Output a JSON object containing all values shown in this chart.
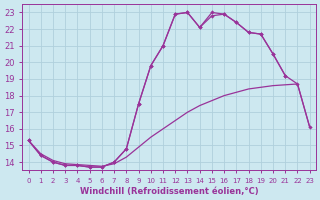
{
  "background_color": "#cde8f0",
  "grid_color": "#b0d0dc",
  "line_color": "#993399",
  "xlim": [
    -0.5,
    23.5
  ],
  "ylim": [
    13.5,
    23.5
  ],
  "xticks": [
    0,
    1,
    2,
    3,
    4,
    5,
    6,
    7,
    8,
    9,
    10,
    11,
    12,
    13,
    14,
    15,
    16,
    17,
    18,
    19,
    20,
    21,
    22,
    23
  ],
  "yticks": [
    14,
    15,
    16,
    17,
    18,
    19,
    20,
    21,
    22,
    23
  ],
  "xlabel": "Windchill (Refroidissement éolien,°C)",
  "series1_x": [
    0,
    1,
    2,
    3,
    4,
    5,
    6,
    7,
    8,
    9,
    10,
    11,
    12,
    13,
    14,
    15,
    16,
    17,
    18,
    19,
    20,
    21
  ],
  "series1_y": [
    15.3,
    14.4,
    14.0,
    13.8,
    13.8,
    13.7,
    13.7,
    14.0,
    14.8,
    17.5,
    19.8,
    21.0,
    22.9,
    23.0,
    22.1,
    23.0,
    22.9,
    22.4,
    21.8,
    21.7,
    20.5,
    19.2
  ],
  "series2_x": [
    0,
    1,
    2,
    3,
    4,
    5,
    6,
    7,
    8,
    9,
    10,
    11,
    12,
    13,
    14,
    15,
    16,
    17,
    18,
    19,
    20,
    21,
    22,
    23
  ],
  "series2_y": [
    15.3,
    14.4,
    14.0,
    13.8,
    13.8,
    13.7,
    13.7,
    14.0,
    14.8,
    17.5,
    19.8,
    21.0,
    22.9,
    23.0,
    22.1,
    22.8,
    22.9,
    22.4,
    21.8,
    21.7,
    20.5,
    19.2,
    18.7,
    16.1
  ],
  "series3_x": [
    0,
    1,
    2,
    3,
    4,
    5,
    6,
    7,
    8,
    9,
    10,
    11,
    12,
    13,
    14,
    15,
    16,
    17,
    18,
    19,
    20,
    21,
    22,
    23
  ],
  "series3_y": [
    15.3,
    14.5,
    14.1,
    13.9,
    13.85,
    13.8,
    13.75,
    13.9,
    14.3,
    14.9,
    15.5,
    16.0,
    16.5,
    17.0,
    17.4,
    17.7,
    18.0,
    18.2,
    18.4,
    18.5,
    18.6,
    18.65,
    18.7,
    16.1
  ],
  "tick_color": "#993399",
  "tick_label_color": "#993399"
}
